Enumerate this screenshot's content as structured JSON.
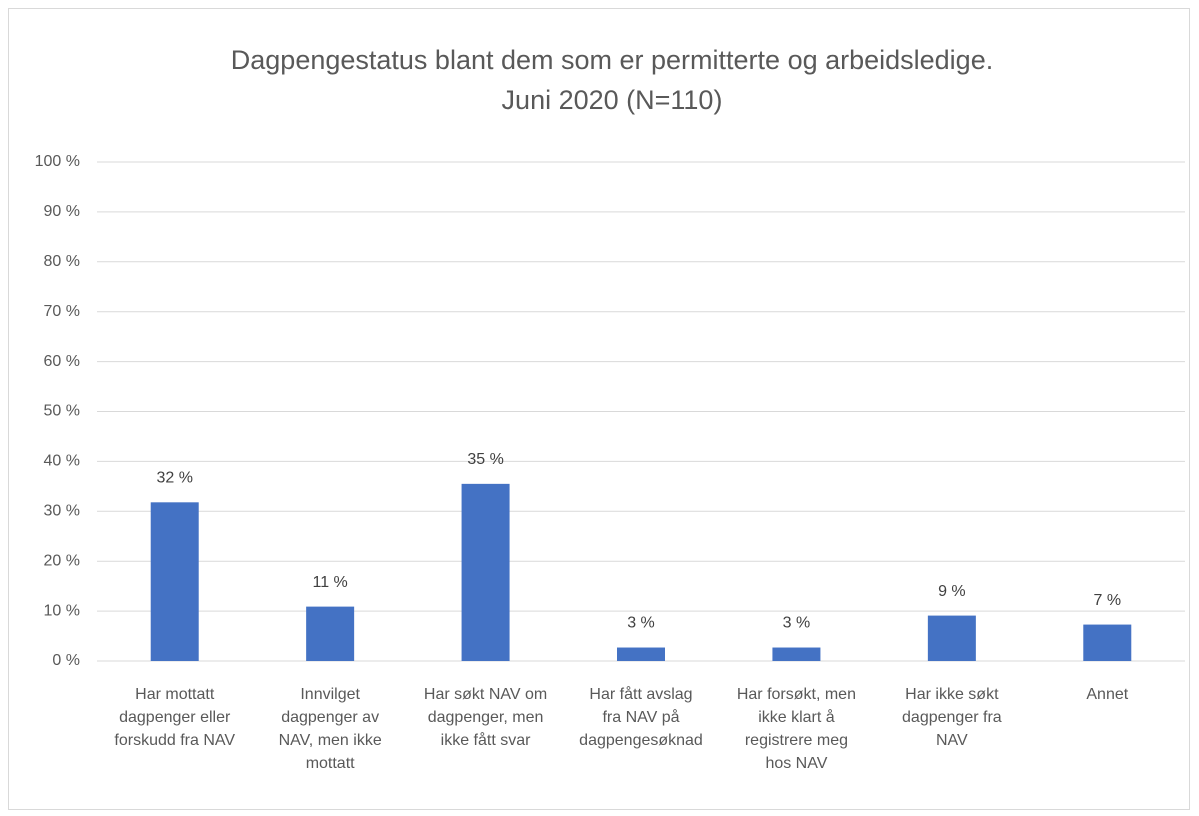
{
  "chart_data": {
    "type": "bar",
    "title": "Dagpengestatus blant dem som er permitterte og arbeidsledige.",
    "subtitle": "Juni 2020 (N=110)",
    "categories": [
      [
        "Har mottatt",
        "dagpenger eller",
        "forskudd fra NAV"
      ],
      [
        "Innvilget",
        "dagpenger av",
        "NAV, men ikke",
        "mottatt"
      ],
      [
        "Har søkt NAV om",
        "dagpenger, men",
        "ikke fått svar"
      ],
      [
        "Har fått avslag",
        "fra NAV på",
        "dagpengesøknad"
      ],
      [
        "Har forsøkt, men",
        "ikke klart å",
        "registrere meg",
        "hos NAV"
      ],
      [
        "Har ikke søkt",
        "dagpenger fra",
        "NAV"
      ],
      [
        "Annet"
      ]
    ],
    "values": [
      31.8,
      10.9,
      35.5,
      2.7,
      2.7,
      9.1,
      7.3
    ],
    "value_labels": [
      "32 %",
      "11 %",
      "35 %",
      "3 %",
      "3 %",
      "9 %",
      "7 %"
    ],
    "color": "#4472c4",
    "ylim": [
      0,
      100
    ],
    "yticks": [
      {
        "value": 0,
        "label": "0 %"
      },
      {
        "value": 10,
        "label": "10 %"
      },
      {
        "value": 20,
        "label": "20 %"
      },
      {
        "value": 30,
        "label": "30 %"
      },
      {
        "value": 40,
        "label": "40 %"
      },
      {
        "value": 50,
        "label": "50 %"
      },
      {
        "value": 60,
        "label": "60 %"
      },
      {
        "value": 70,
        "label": "70 %"
      },
      {
        "value": 80,
        "label": "80 %"
      },
      {
        "value": 90,
        "label": "90 %"
      },
      {
        "value": 100,
        "label": "100 %"
      }
    ],
    "grid": true
  }
}
